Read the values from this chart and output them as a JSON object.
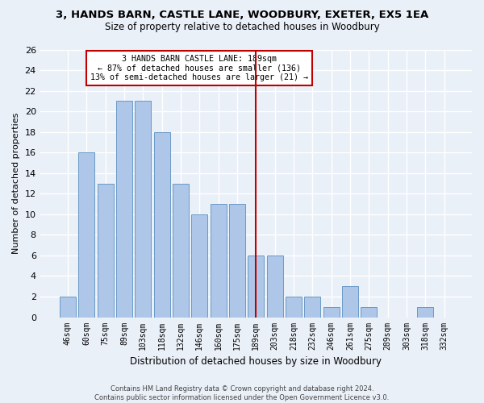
{
  "title": "3, HANDS BARN, CASTLE LANE, WOODBURY, EXETER, EX5 1EA",
  "subtitle": "Size of property relative to detached houses in Woodbury",
  "xlabel": "Distribution of detached houses by size in Woodbury",
  "ylabel": "Number of detached properties",
  "bar_labels": [
    "46sqm",
    "60sqm",
    "75sqm",
    "89sqm",
    "103sqm",
    "118sqm",
    "132sqm",
    "146sqm",
    "160sqm",
    "175sqm",
    "189sqm",
    "203sqm",
    "218sqm",
    "232sqm",
    "246sqm",
    "261sqm",
    "275sqm",
    "289sqm",
    "303sqm",
    "318sqm",
    "332sqm"
  ],
  "bar_values": [
    2,
    16,
    13,
    21,
    21,
    18,
    13,
    10,
    11,
    11,
    6,
    6,
    2,
    2,
    1,
    3,
    1,
    0,
    0,
    1,
    0
  ],
  "bar_color": "#aec6e8",
  "bar_edge_color": "#5a8fc0",
  "highlight_index": 10,
  "highlight_color": "#c00000",
  "annotation_text": "3 HANDS BARN CASTLE LANE: 189sqm\n← 87% of detached houses are smaller (136)\n13% of semi-detached houses are larger (21) →",
  "annotation_box_color": "#ffffff",
  "annotation_box_edge": "#c00000",
  "ylim": [
    0,
    26
  ],
  "yticks": [
    0,
    2,
    4,
    6,
    8,
    10,
    12,
    14,
    16,
    18,
    20,
    22,
    24,
    26
  ],
  "footer": "Contains HM Land Registry data © Crown copyright and database right 2024.\nContains public sector information licensed under the Open Government Licence v3.0.",
  "bg_color": "#eaf0f8",
  "grid_color": "#ffffff",
  "bar_width": 0.85
}
